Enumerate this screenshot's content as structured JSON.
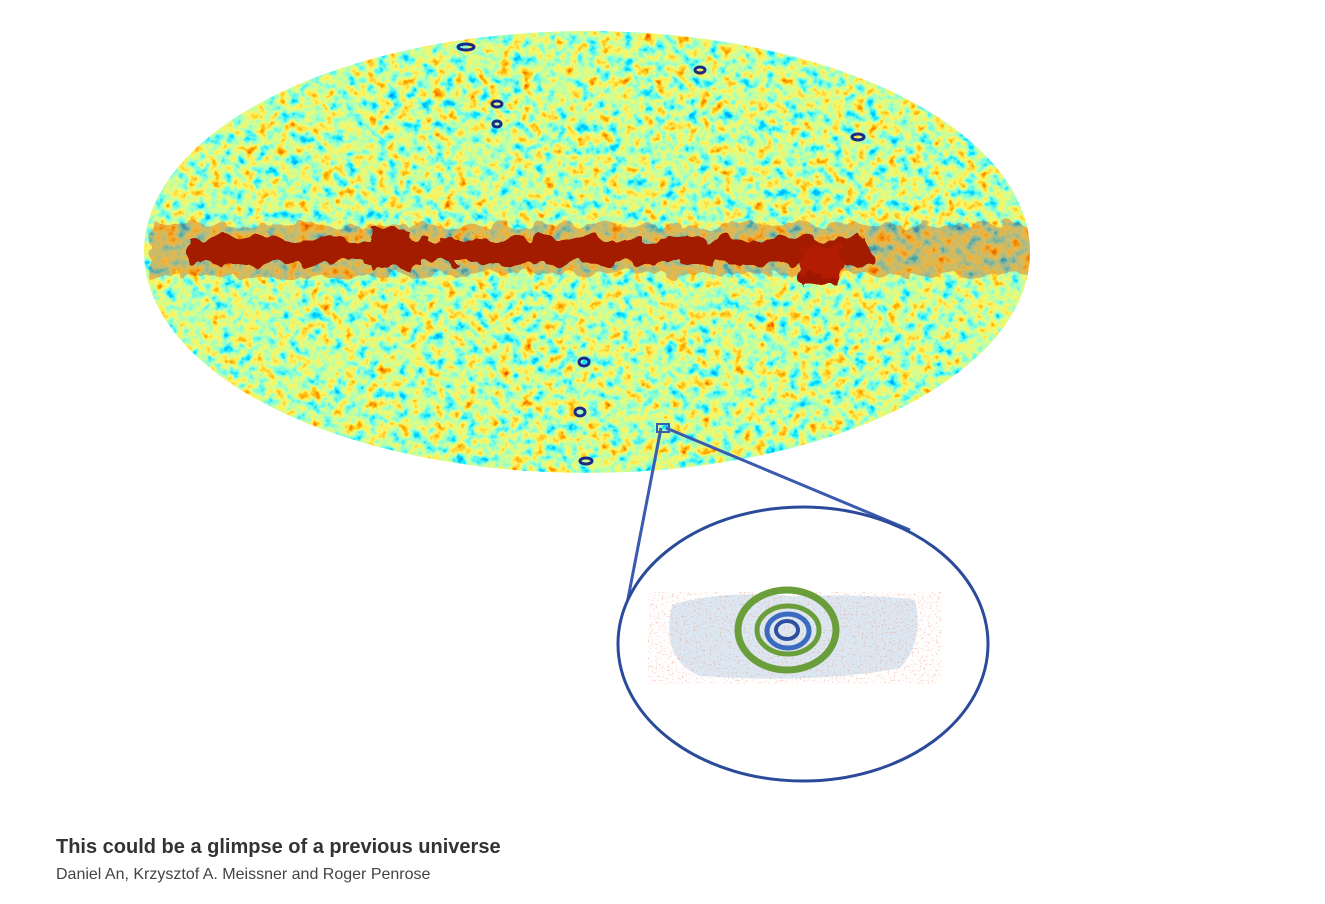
{
  "caption": {
    "title": "This could be a glimpse of a previous universe",
    "credit": "Daniel An, Krzysztof A. Meissner and Roger Penrose"
  }
}
